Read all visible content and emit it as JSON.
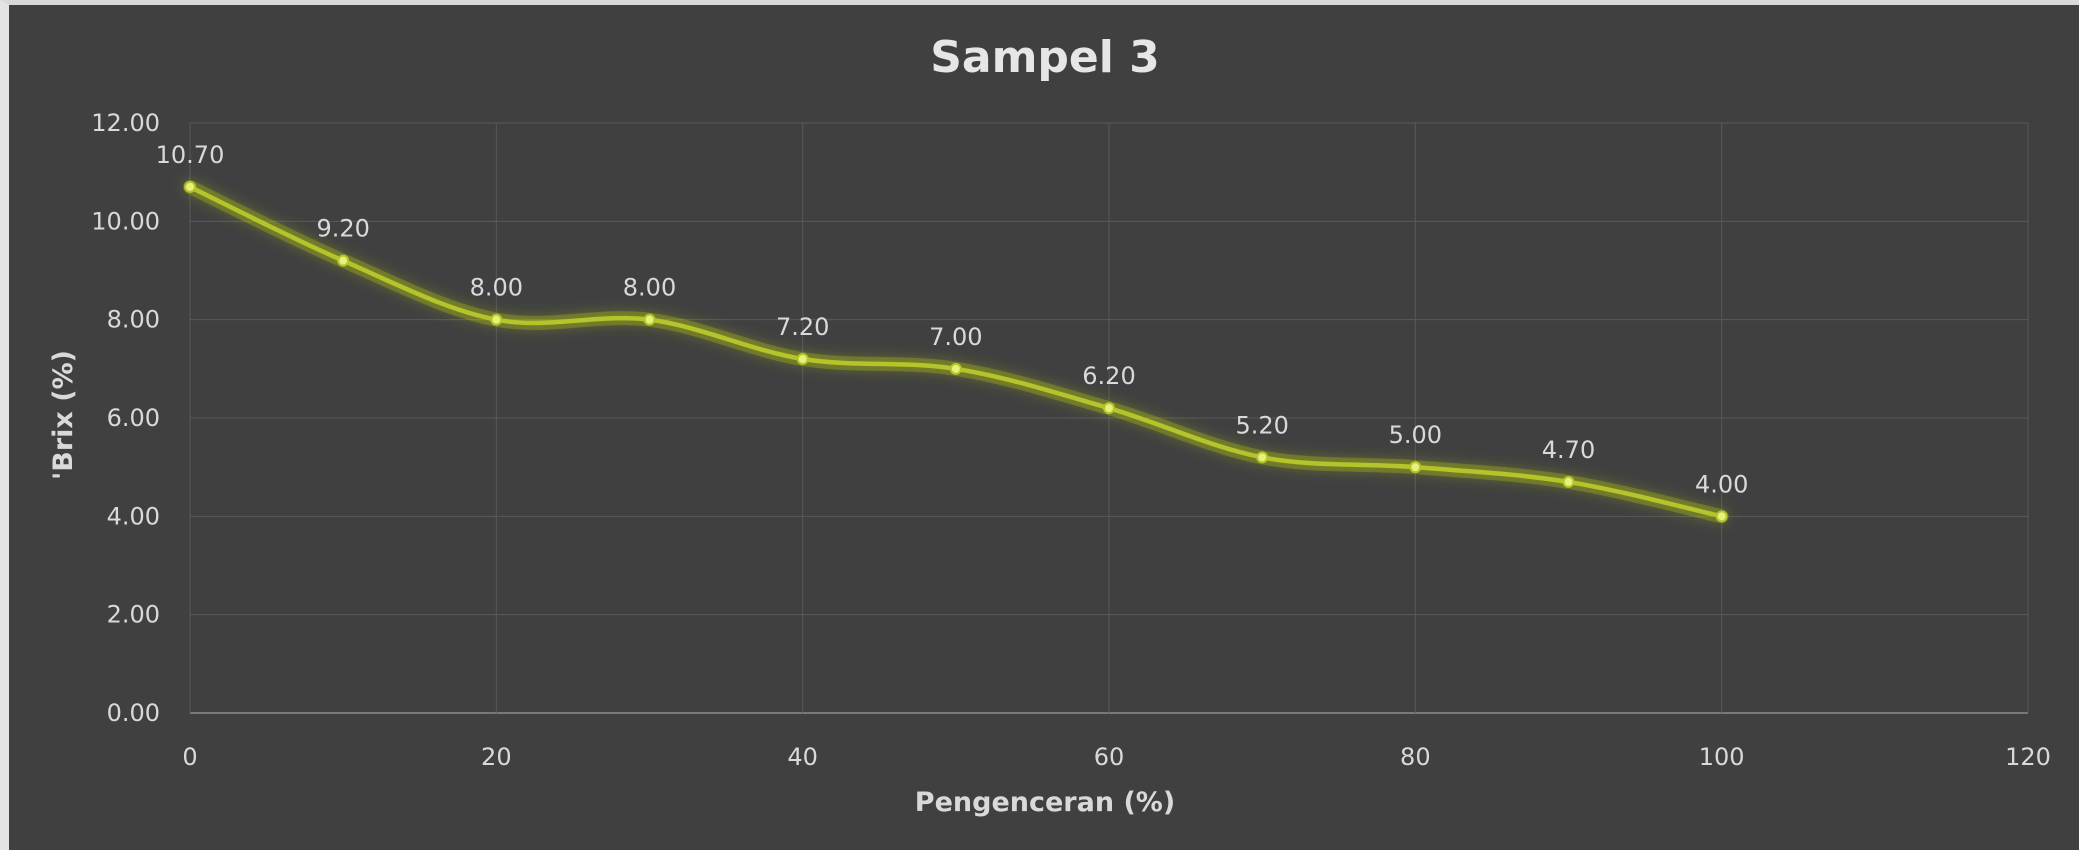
{
  "chart_data": {
    "type": "line",
    "title": "Sampel 3",
    "xlabel": "Pengenceran (%)",
    "ylabel": "'Brix (%)",
    "x": [
      0,
      10,
      20,
      30,
      40,
      50,
      60,
      70,
      80,
      90,
      100
    ],
    "series": [
      {
        "values": [
          10.7,
          9.2,
          8.0,
          8.0,
          7.2,
          7.0,
          6.2,
          5.2,
          5.0,
          4.7,
          4.0
        ],
        "labels": [
          "10.70",
          "9.20",
          "8.00",
          "8.00",
          "7.20",
          "7.00",
          "6.20",
          "5.20",
          "5.00",
          "4.70",
          "4.00"
        ],
        "color": "#b5c42a",
        "smooth": true,
        "glow_color": "#d4f000"
      }
    ],
    "xlim": [
      0,
      120
    ],
    "ylim": [
      0,
      12
    ],
    "x_ticks": [
      "0",
      "20",
      "40",
      "60",
      "80",
      "100",
      "120"
    ],
    "y_ticks": [
      "0.00",
      "2.00",
      "4.00",
      "6.00",
      "8.00",
      "10.00",
      "12.00"
    ],
    "grid": true,
    "legend": "none"
  },
  "colors": {
    "background": "#404040",
    "gridline": "#595959",
    "text": "#d9d9d9"
  }
}
